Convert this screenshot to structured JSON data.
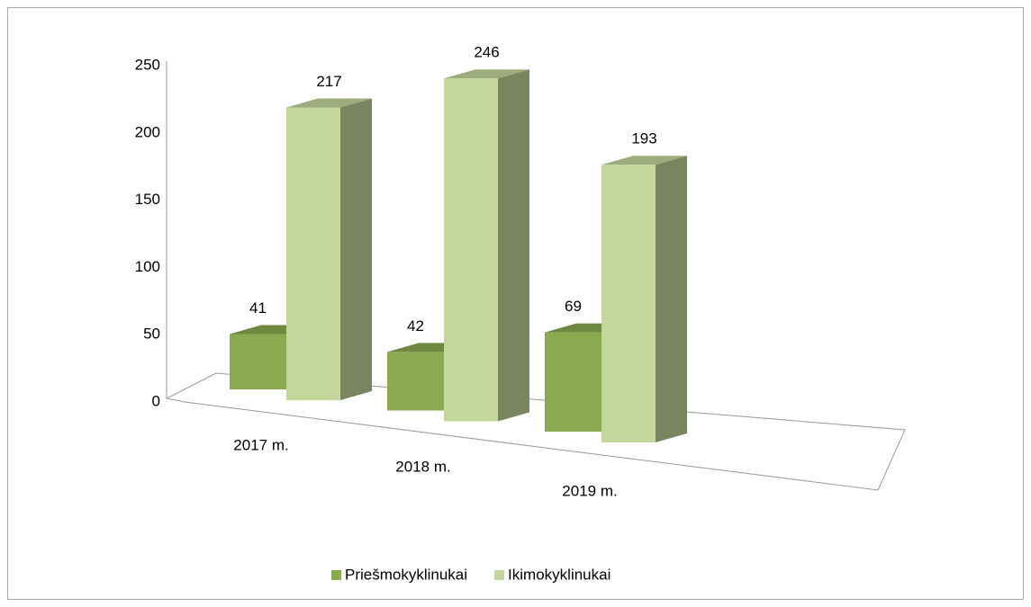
{
  "chart_data": {
    "type": "bar3d",
    "categories": [
      "2017 m.",
      "2018 m.",
      "2019 m."
    ],
    "series": [
      {
        "name": "Priešmokyklinukai",
        "color": "#8aaa50",
        "values": [
          41,
          42,
          69
        ]
      },
      {
        "name": "Ikimokyklinukai",
        "color": "#c4d79b",
        "values": [
          217,
          246,
          193
        ]
      }
    ],
    "ylim": [
      0,
      250
    ],
    "yticks": [
      0,
      50,
      100,
      150,
      200,
      250
    ],
    "legend": "bottom"
  }
}
